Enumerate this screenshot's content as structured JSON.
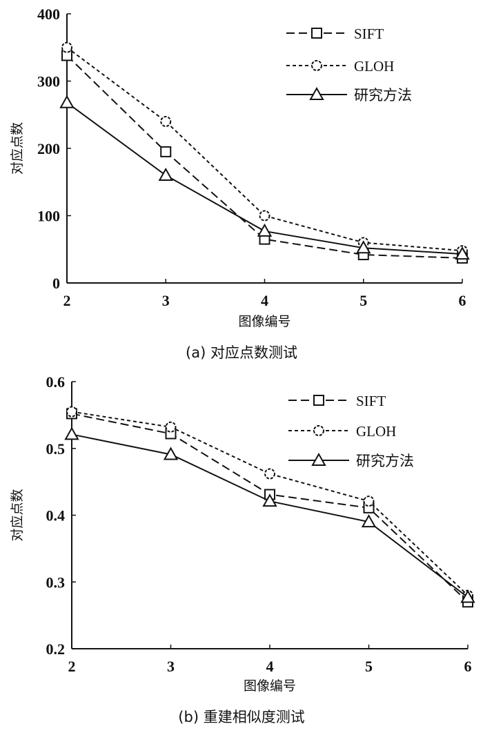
{
  "chart_data": [
    {
      "type": "line",
      "caption": "(a) 对应点数测试",
      "xlabel": "图像编号",
      "ylabel": "对应点数",
      "x": [
        2,
        3,
        4,
        5,
        6
      ],
      "ylim": [
        0,
        400
      ],
      "yticks": [
        0,
        100,
        200,
        300,
        400
      ],
      "ytick_labels": [
        "0",
        "100",
        "200",
        "300",
        "400"
      ],
      "xtick_labels": [
        "2",
        "3",
        "4",
        "5",
        "6"
      ],
      "grid": false,
      "legend_position": "top-right",
      "series": [
        {
          "name": "SIFT",
          "style": "dashed",
          "marker": "square",
          "values": [
            338,
            195,
            65,
            42,
            37
          ]
        },
        {
          "name": "GLOH",
          "style": "dotted",
          "marker": "circle",
          "values": [
            350,
            240,
            100,
            60,
            48
          ]
        },
        {
          "name": "研究方法",
          "style": "solid",
          "marker": "triangle",
          "values": [
            268,
            160,
            77,
            52,
            43
          ]
        }
      ]
    },
    {
      "type": "line",
      "caption": "(b) 重建相似度测试",
      "xlabel": "图像编号",
      "ylabel": "对应点数",
      "x": [
        2,
        3,
        4,
        5,
        6
      ],
      "ylim": [
        0.2,
        0.6
      ],
      "yticks": [
        0.2,
        0.3,
        0.4,
        0.5,
        0.6
      ],
      "ytick_labels": [
        "0.2",
        "0.3",
        "0.4",
        "0.5",
        "0.6"
      ],
      "xtick_labels": [
        "2",
        "3",
        "4",
        "5",
        "6"
      ],
      "grid": false,
      "legend_position": "top-right",
      "series": [
        {
          "name": "SIFT",
          "style": "dashed",
          "marker": "square",
          "values": [
            0.552,
            0.522,
            0.431,
            0.411,
            0.27
          ]
        },
        {
          "name": "GLOH",
          "style": "dotted",
          "marker": "circle",
          "values": [
            0.555,
            0.532,
            0.462,
            0.421,
            0.28
          ]
        },
        {
          "name": "研究方法",
          "style": "solid",
          "marker": "triangle",
          "values": [
            0.521,
            0.491,
            0.421,
            0.39,
            0.277
          ]
        }
      ]
    }
  ]
}
